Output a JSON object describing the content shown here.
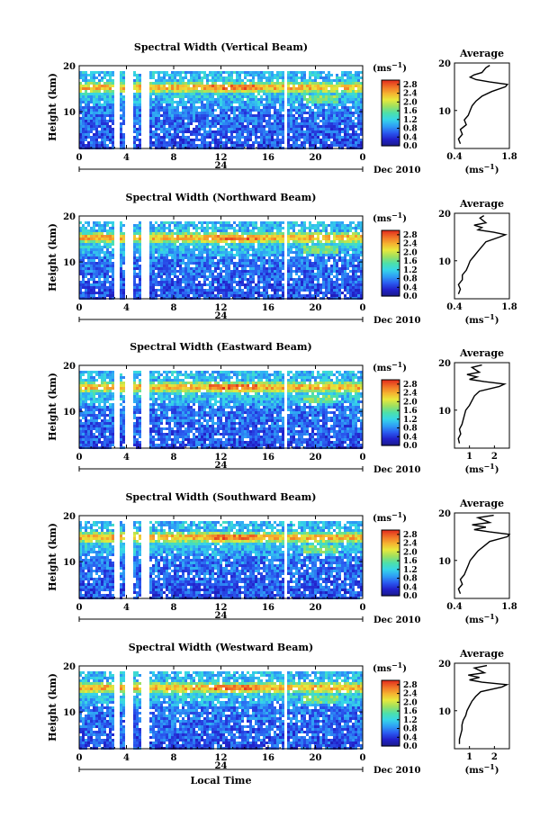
{
  "figure": {
    "xlabel": "Local Time",
    "date_label": "Dec 2010",
    "day_label": "24",
    "ylabel": "Height (km)",
    "colorbar_unit": "(ms",
    "colorbar_unit_exp": "−1",
    "colorbar_unit_close": ")",
    "average_title": "Average",
    "average_unit": "(ms",
    "average_unit_exp": "−1",
    "average_unit_close": ")"
  },
  "colorscale": {
    "stops": [
      "#1a1a8c",
      "#2222cc",
      "#2a5cf0",
      "#2fa0f5",
      "#36d6e8",
      "#4ee0a8",
      "#9ee060",
      "#e8e83c",
      "#f5b030",
      "#f07028",
      "#e02a1e"
    ],
    "ticks": [
      "0.0",
      "0.4",
      "0.8",
      "1.2",
      "1.6",
      "2.0",
      "2.4",
      "2.8"
    ]
  },
  "chart_data": [
    {
      "type": "heatmap",
      "title": "Spectral Width (Vertical Beam)",
      "xlabel": "",
      "ylabel": "Height (km)",
      "x_ticks": [
        "0",
        "4",
        "8",
        "12",
        "16",
        "20",
        "0"
      ],
      "y_ticks": [
        "10",
        "20"
      ],
      "xlim": [
        0,
        24
      ],
      "ylim": [
        2,
        20
      ],
      "data_gaps_hours": [
        [
          3.0,
          3.5
        ],
        [
          4.0,
          4.6
        ],
        [
          5.2,
          6.0
        ],
        [
          17.3,
          17.7
        ]
      ],
      "colorbar": {
        "min": 0.0,
        "max": 3.0,
        "ticks": [
          "0.0",
          "0.4",
          "0.8",
          "1.2",
          "1.6",
          "2.0",
          "2.4",
          "2.8"
        ]
      },
      "average_profile": {
        "xlim": [
          0.4,
          1.8
        ],
        "x_ticks": [
          "0.4",
          "1.8"
        ],
        "y_ticks": [
          "10",
          "20"
        ],
        "height_km": [
          3,
          4,
          5,
          6,
          7,
          8,
          9,
          10,
          11,
          12,
          13,
          14,
          15,
          15.5,
          16,
          16.5,
          17,
          17.5,
          18,
          19,
          19.5
        ],
        "value": [
          0.55,
          0.5,
          0.6,
          0.55,
          0.7,
          0.65,
          0.75,
          0.8,
          0.85,
          0.95,
          1.1,
          1.35,
          1.7,
          1.75,
          1.3,
          0.95,
          0.8,
          0.9,
          1.1,
          1.2,
          1.3
        ]
      }
    },
    {
      "type": "heatmap",
      "title": "Spectral Width (Northward Beam)",
      "xlabel": "",
      "ylabel": "Height (km)",
      "x_ticks": [
        "0",
        "4",
        "8",
        "12",
        "16",
        "20",
        "0"
      ],
      "y_ticks": [
        "10",
        "20"
      ],
      "xlim": [
        0,
        24
      ],
      "ylim": [
        2,
        20
      ],
      "data_gaps_hours": [
        [
          3.0,
          3.5
        ],
        [
          4.0,
          4.6
        ],
        [
          5.2,
          6.0
        ],
        [
          17.3,
          17.7
        ]
      ],
      "colorbar": {
        "min": 0.0,
        "max": 3.0,
        "ticks": [
          "0.0",
          "0.4",
          "0.8",
          "1.2",
          "1.6",
          "2.0",
          "2.4",
          "2.8"
        ]
      },
      "average_profile": {
        "xlim": [
          0.4,
          1.8
        ],
        "x_ticks": [
          "0.4",
          "1.8"
        ],
        "y_ticks": [
          "10",
          "20"
        ],
        "height_km": [
          3,
          4,
          5,
          6,
          7,
          8,
          9,
          10,
          11,
          12,
          13,
          14,
          15,
          15.5,
          16,
          16.5,
          17,
          17.5,
          18,
          19,
          19.5
        ],
        "value": [
          0.5,
          0.55,
          0.5,
          0.6,
          0.6,
          0.7,
          0.75,
          0.8,
          0.9,
          1.0,
          1.1,
          1.2,
          1.55,
          1.7,
          1.4,
          1.0,
          1.1,
          0.9,
          1.2,
          1.05,
          1.15
        ]
      }
    },
    {
      "type": "heatmap",
      "title": "Spectral Width (Eastward Beam)",
      "xlabel": "",
      "ylabel": "Height (km)",
      "x_ticks": [
        "0",
        "4",
        "8",
        "12",
        "16",
        "20",
        "0"
      ],
      "y_ticks": [
        "10",
        "20"
      ],
      "xlim": [
        0,
        24
      ],
      "ylim": [
        2,
        20
      ],
      "data_gaps_hours": [
        [
          3.0,
          3.5
        ],
        [
          4.0,
          4.6
        ],
        [
          5.2,
          6.0
        ],
        [
          17.3,
          17.7
        ]
      ],
      "colorbar": {
        "min": 0.0,
        "max": 3.0,
        "ticks": [
          "0.0",
          "0.4",
          "0.8",
          "1.2",
          "1.6",
          "2.0",
          "2.4",
          "2.8"
        ]
      },
      "average_profile": {
        "xlim": [
          0.4,
          2.6
        ],
        "x_ticks": [
          "1",
          "2"
        ],
        "y_ticks": [
          "10",
          "20"
        ],
        "height_km": [
          3,
          4,
          5,
          6,
          7,
          8,
          9,
          10,
          11,
          12,
          13,
          14,
          15,
          15.5,
          16,
          16.5,
          17,
          17.5,
          18,
          19,
          19.5
        ],
        "value": [
          0.6,
          0.55,
          0.65,
          0.6,
          0.7,
          0.75,
          0.8,
          0.85,
          1.0,
          1.1,
          1.2,
          1.4,
          2.2,
          2.4,
          1.6,
          1.0,
          1.3,
          0.9,
          1.4,
          1.1,
          1.5
        ]
      }
    },
    {
      "type": "heatmap",
      "title": "Spectral Width (Southward Beam)",
      "xlabel": "",
      "ylabel": "Height (km)",
      "x_ticks": [
        "0",
        "4",
        "8",
        "12",
        "16",
        "20",
        "0"
      ],
      "y_ticks": [
        "10",
        "20"
      ],
      "xlim": [
        0,
        24
      ],
      "ylim": [
        2,
        20
      ],
      "data_gaps_hours": [
        [
          3.0,
          3.5
        ],
        [
          4.0,
          4.6
        ],
        [
          5.2,
          6.0
        ],
        [
          17.3,
          17.7
        ]
      ],
      "colorbar": {
        "min": 0.0,
        "max": 3.0,
        "ticks": [
          "0.0",
          "0.4",
          "0.8",
          "1.2",
          "1.6",
          "2.0",
          "2.4",
          "2.8"
        ]
      },
      "average_profile": {
        "xlim": [
          0.4,
          1.8
        ],
        "x_ticks": [
          "0.4",
          "1.8"
        ],
        "y_ticks": [
          "10",
          "20"
        ],
        "height_km": [
          3,
          4,
          5,
          6,
          7,
          8,
          9,
          10,
          11,
          12,
          13,
          14,
          15,
          15.5,
          16,
          16.5,
          17,
          17.5,
          18,
          19,
          19.5
        ],
        "value": [
          0.55,
          0.5,
          0.6,
          0.55,
          0.65,
          0.7,
          0.75,
          0.8,
          0.9,
          1.0,
          1.15,
          1.3,
          1.75,
          1.8,
          1.3,
          0.9,
          1.2,
          0.85,
          1.3,
          1.0,
          1.4
        ]
      }
    },
    {
      "type": "heatmap",
      "title": "Spectral Width (Westward Beam)",
      "xlabel": "Local Time",
      "ylabel": "Height (km)",
      "x_ticks": [
        "0",
        "4",
        "8",
        "12",
        "16",
        "20",
        "0"
      ],
      "y_ticks": [
        "10",
        "20"
      ],
      "xlim": [
        0,
        24
      ],
      "ylim": [
        2,
        20
      ],
      "data_gaps_hours": [
        [
          3.0,
          3.5
        ],
        [
          4.0,
          4.6
        ],
        [
          5.2,
          6.0
        ],
        [
          17.3,
          17.7
        ]
      ],
      "colorbar": {
        "min": 0.0,
        "max": 3.0,
        "ticks": [
          "0.0",
          "0.4",
          "0.8",
          "1.2",
          "1.6",
          "2.0",
          "2.4",
          "2.8"
        ]
      },
      "average_profile": {
        "xlim": [
          0.4,
          2.6
        ],
        "x_ticks": [
          "1",
          "2"
        ],
        "y_ticks": [
          "10",
          "20"
        ],
        "height_km": [
          3,
          4,
          5,
          6,
          7,
          8,
          9,
          10,
          11,
          12,
          13,
          14,
          15,
          15.5,
          16,
          16.5,
          17,
          17.5,
          18,
          19,
          19.5
        ],
        "value": [
          0.6,
          0.6,
          0.65,
          0.7,
          0.7,
          0.75,
          0.85,
          0.9,
          1.0,
          1.1,
          1.25,
          1.45,
          2.3,
          2.5,
          1.5,
          1.0,
          1.4,
          0.95,
          1.6,
          1.2,
          1.7
        ]
      }
    }
  ]
}
